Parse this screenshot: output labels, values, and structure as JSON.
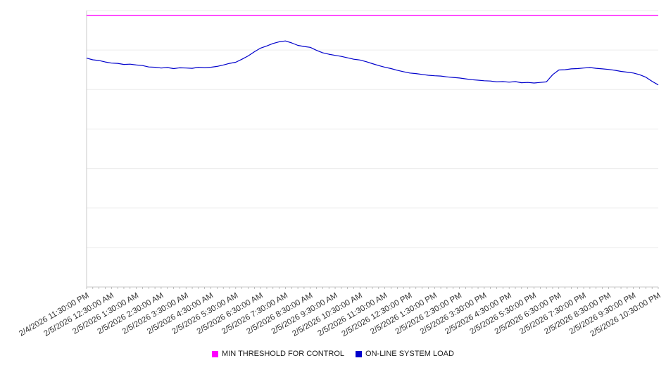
{
  "chart_data": {
    "type": "line",
    "title": "",
    "xlabel": "",
    "ylabel": "",
    "ylim": [
      0,
      100
    ],
    "grid": true,
    "grid_divisions": 7,
    "legend_position": "bottom",
    "background_color": "#ffffff",
    "grid_color": "#ececec",
    "axis_color": "#c8c8c8",
    "tick_color": "#999999",
    "label_color": "#333333",
    "points_per_label": 4,
    "x_labels": [
      "2/4/2026 11:30:00 PM",
      "2/5/2026 12:30:00 AM",
      "2/5/2026 1:30:00 AM",
      "2/5/2026 2:30:00 AM",
      "2/5/2026 3:30:00 AM",
      "2/5/2026 4:30:00 AM",
      "2/5/2026 5:30:00 AM",
      "2/5/2026 6:30:00 AM",
      "2/5/2026 7:30:00 AM",
      "2/5/2026 8:30:00 AM",
      "2/5/2026 9:30:00 AM",
      "2/5/2026 10:30:00 AM",
      "2/5/2026 11:30:00 AM",
      "2/5/2026 12:30:00 PM",
      "2/5/2026 1:30:00 PM",
      "2/5/2026 2:30:00 PM",
      "2/5/2026 3:30:00 PM",
      "2/5/2026 4:30:00 PM",
      "2/5/2026 5:30:00 PM",
      "2/5/2026 6:30:00 PM",
      "2/5/2026 7:30:00 PM",
      "2/5/2026 8:30:00 PM",
      "2/5/2026 9:30:00 PM",
      "2/5/2026 10:30:00 PM"
    ],
    "series": [
      {
        "name": "MIN THRESHOLD FOR CONTROL",
        "color": "#ff00ff",
        "value": 98.2
      },
      {
        "name": "ON-LINE SYSTEM LOAD",
        "color": "#0000cc",
        "values": [
          82.8,
          82.2,
          81.9,
          81.4,
          81.0,
          80.9,
          80.5,
          80.6,
          80.3,
          80.1,
          79.6,
          79.5,
          79.2,
          79.4,
          79.0,
          79.3,
          79.2,
          79.1,
          79.5,
          79.3,
          79.5,
          79.8,
          80.3,
          80.9,
          81.3,
          82.4,
          83.6,
          85.1,
          86.4,
          87.2,
          88.1,
          88.7,
          89.0,
          88.3,
          87.4,
          87.0,
          86.7,
          85.6,
          84.7,
          84.2,
          83.8,
          83.4,
          82.9,
          82.4,
          82.1,
          81.5,
          80.8,
          80.1,
          79.5,
          79.0,
          78.4,
          77.9,
          77.4,
          77.2,
          76.9,
          76.6,
          76.4,
          76.3,
          76.0,
          75.8,
          75.6,
          75.3,
          75.0,
          74.8,
          74.6,
          74.5,
          74.2,
          74.3,
          74.1,
          74.3,
          73.9,
          74.0,
          73.8,
          74.0,
          74.2,
          76.8,
          78.5,
          78.6,
          78.9,
          79.0,
          79.2,
          79.4,
          79.1,
          78.9,
          78.7,
          78.4,
          78.0,
          77.7,
          77.4,
          76.8,
          75.9,
          74.4,
          73.1
        ]
      }
    ]
  },
  "legend": {
    "threshold_label": "MIN THRESHOLD FOR CONTROL",
    "load_label": "ON-LINE SYSTEM LOAD"
  }
}
